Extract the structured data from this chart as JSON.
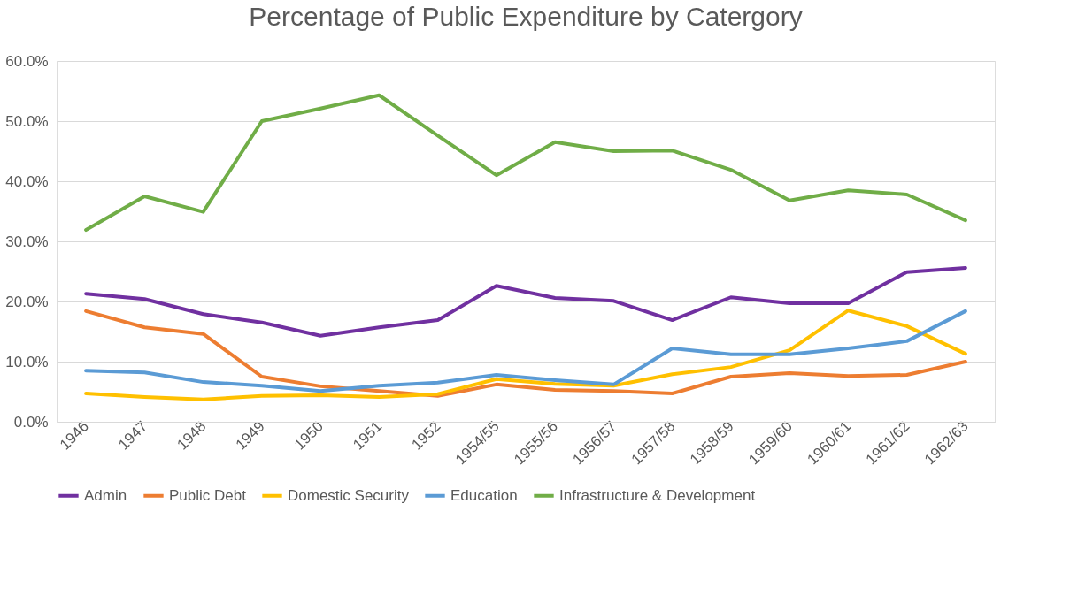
{
  "chart_data": {
    "type": "line",
    "title": "Percentage of Public Expenditure by Catergory",
    "categories": [
      "1946",
      "1947",
      "1948",
      "1949",
      "1950",
      "1951",
      "1952",
      "1954/55",
      "1955/56",
      "1956/57",
      "1957/58",
      "1958/59",
      "1959/60",
      "1960/61",
      "1961/62",
      "1962/63"
    ],
    "series": [
      {
        "name": "Admin",
        "color": "#7030a0",
        "values": [
          21.3,
          20.4,
          17.9,
          16.5,
          14.3,
          15.7,
          16.9,
          22.6,
          20.6,
          20.1,
          16.9,
          20.7,
          19.7,
          19.7,
          24.9,
          25.6
        ]
      },
      {
        "name": "Public Debt",
        "color": "#ed7d31",
        "values": [
          18.4,
          15.7,
          14.6,
          7.5,
          5.9,
          5.1,
          4.3,
          6.2,
          5.3,
          5.1,
          4.7,
          7.5,
          8.1,
          7.6,
          7.8,
          10.0
        ]
      },
      {
        "name": "Domestic Security",
        "color": "#ffc000",
        "values": [
          4.7,
          4.1,
          3.7,
          4.3,
          4.4,
          4.1,
          4.6,
          7.1,
          6.3,
          6.0,
          7.9,
          9.1,
          11.9,
          18.5,
          15.9,
          11.3
        ]
      },
      {
        "name": "Education",
        "color": "#5b9bd5",
        "values": [
          8.5,
          8.2,
          6.6,
          6.0,
          5.1,
          6.0,
          6.5,
          7.8,
          6.9,
          6.2,
          12.2,
          11.2,
          11.2,
          12.2,
          13.4,
          18.4
        ]
      },
      {
        "name": "Infrastructure & Development",
        "color": "#70ad47",
        "values": [
          31.9,
          37.5,
          34.9,
          50.0,
          52.1,
          54.3,
          47.6,
          41.0,
          46.5,
          45.0,
          45.1,
          41.9,
          36.8,
          38.5,
          37.8,
          33.5
        ]
      }
    ],
    "ylim": [
      0,
      60
    ],
    "yticks": [
      {
        "value": 0,
        "label": "0.0%"
      },
      {
        "value": 10,
        "label": "10.0%"
      },
      {
        "value": 20,
        "label": "20.0%"
      },
      {
        "value": 30,
        "label": "30.0%"
      },
      {
        "value": 40,
        "label": "40.0%"
      },
      {
        "value": 50,
        "label": "50.0%"
      },
      {
        "value": 60,
        "label": "60.0%"
      }
    ],
    "grid": "y",
    "legend": "bottom",
    "marker": "none",
    "line_style": "solid"
  }
}
